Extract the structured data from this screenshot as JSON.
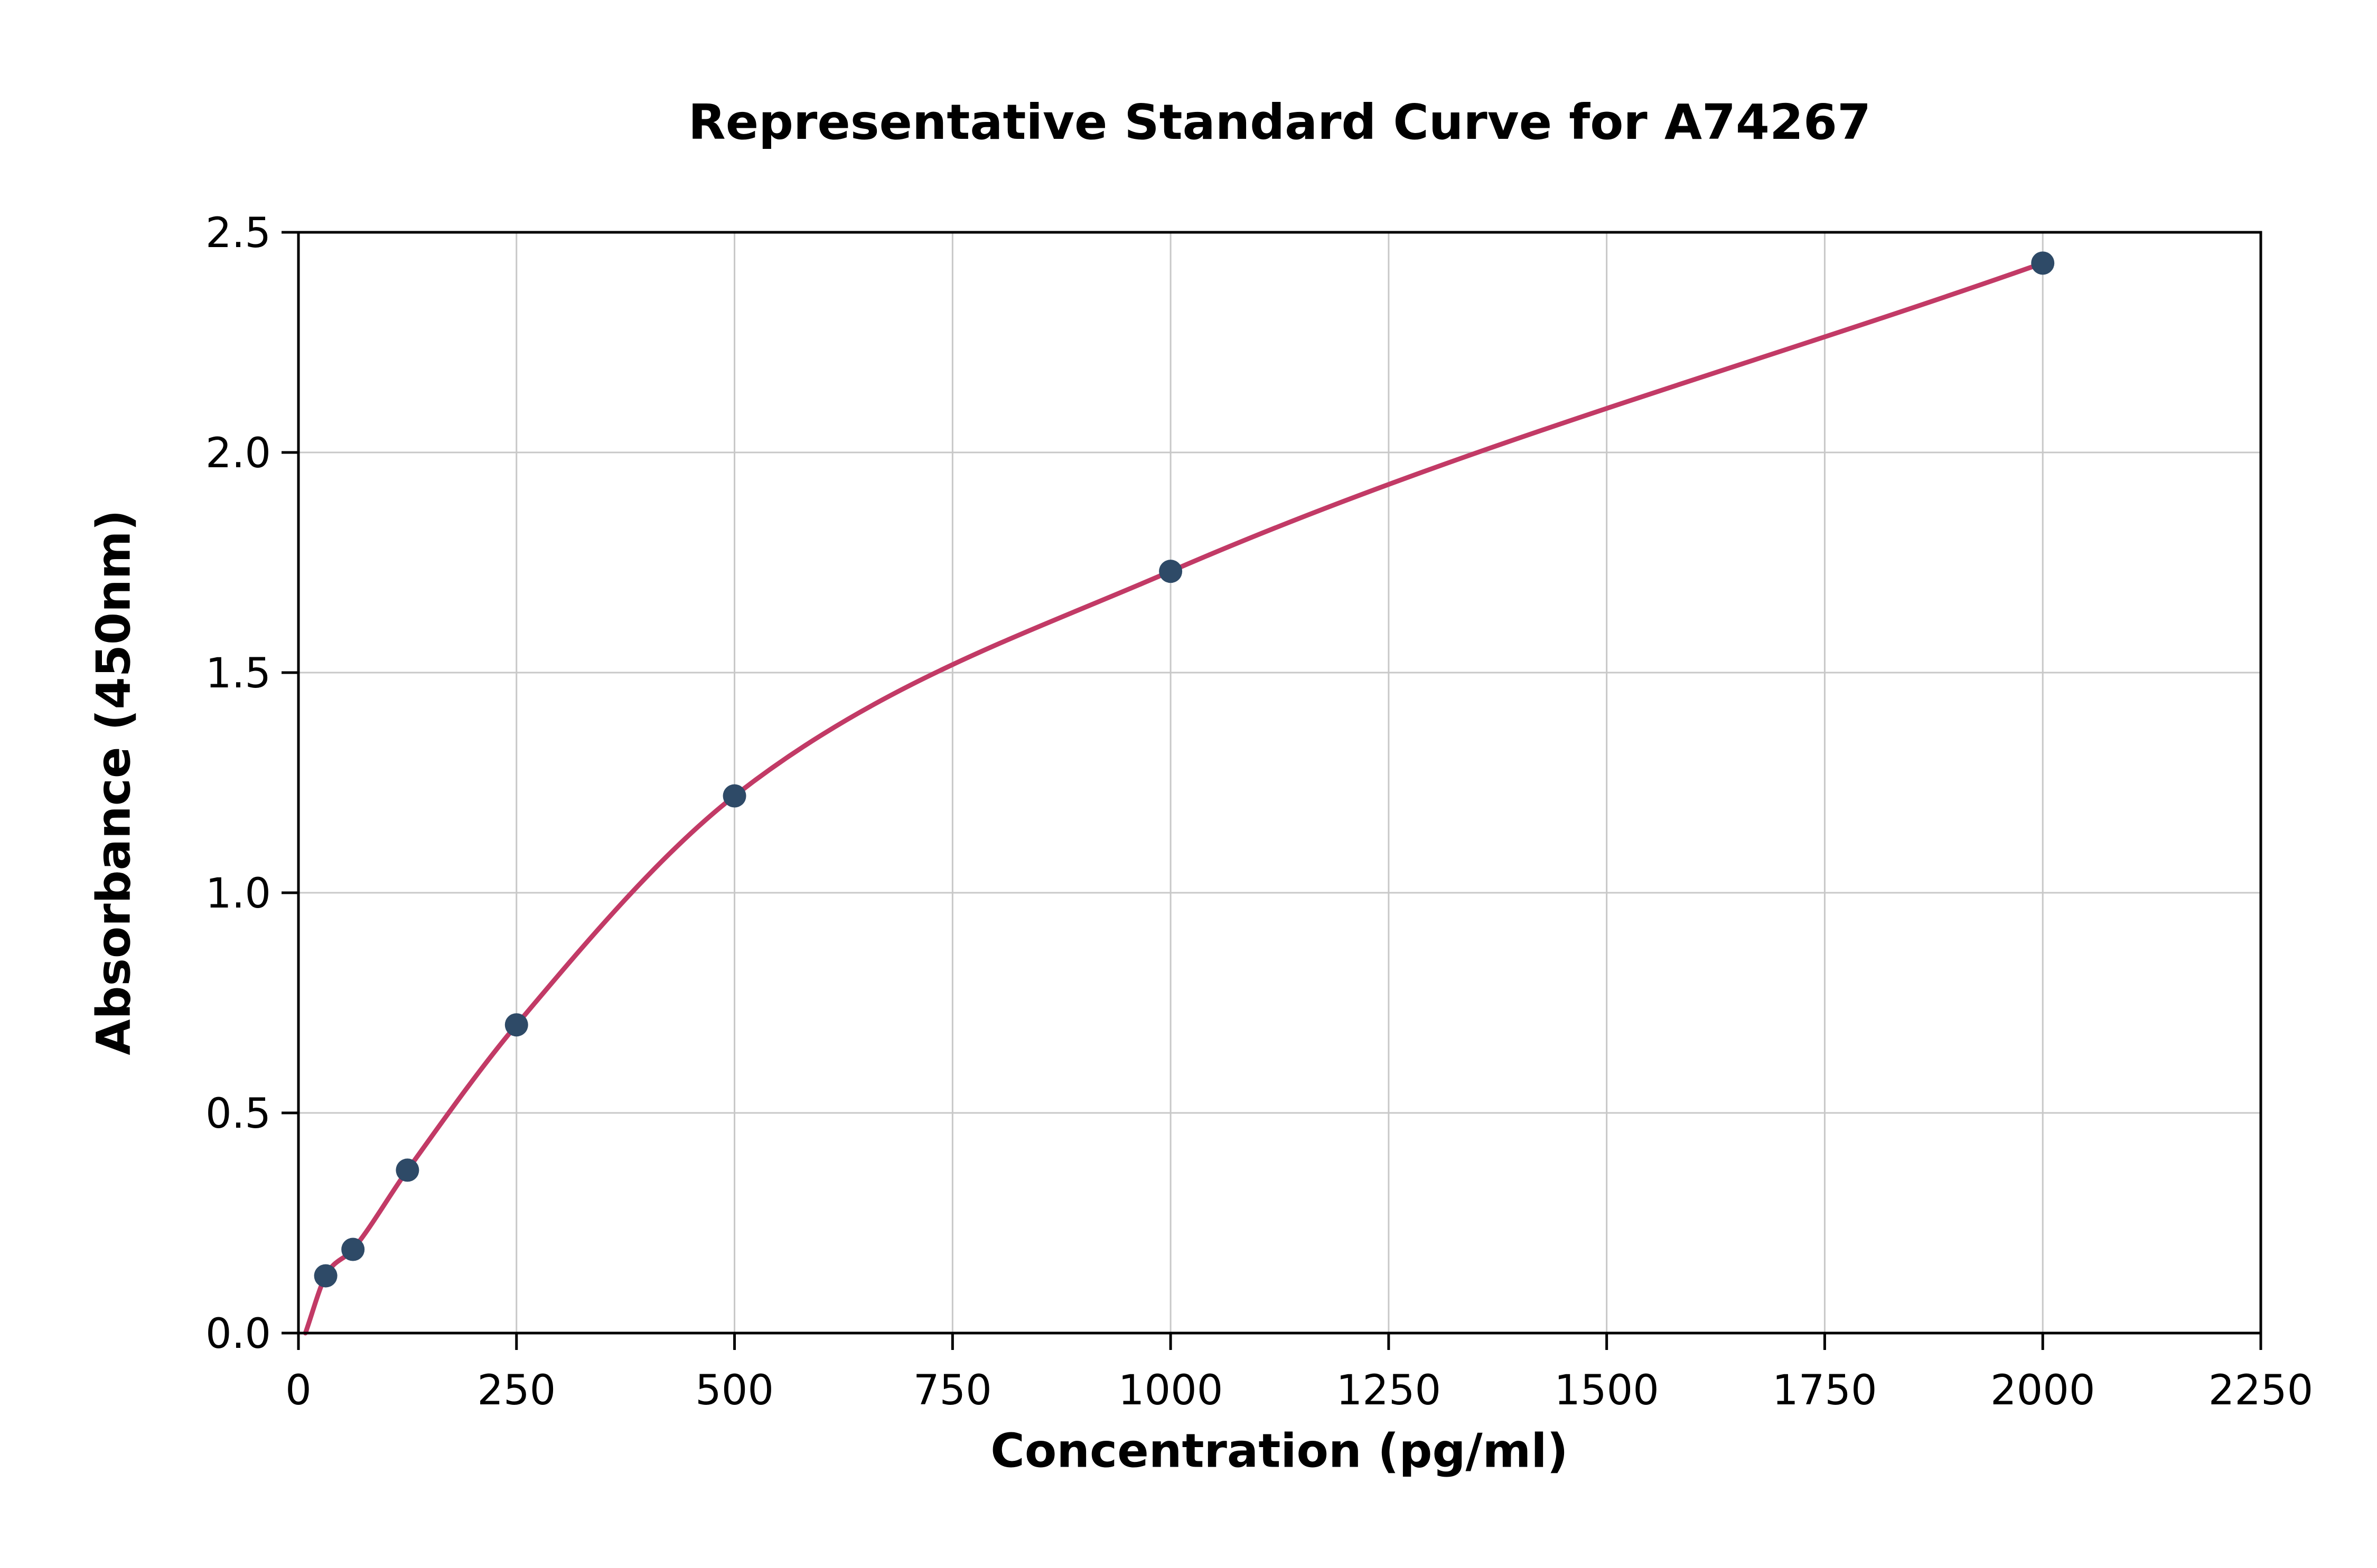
{
  "chart_data": {
    "type": "scatter",
    "title": "Representative Standard Curve for A74267",
    "xlabel": "Concentration (pg/ml)",
    "ylabel": "Absorbance (450nm)",
    "xlim": [
      0,
      2250
    ],
    "ylim": [
      0,
      2.5
    ],
    "x_ticks": [
      0,
      250,
      500,
      750,
      1000,
      1250,
      1500,
      1750,
      2000,
      2250
    ],
    "x_tick_labels": [
      "0",
      "250",
      "500",
      "750",
      "1000",
      "1250",
      "1500",
      "1750",
      "2000",
      "2250"
    ],
    "y_ticks": [
      0,
      0.5,
      1.0,
      1.5,
      2.0,
      2.5
    ],
    "y_tick_labels": [
      "0.0",
      "0.5",
      "1.0",
      "1.5",
      "2.0",
      "2.5"
    ],
    "grid": true,
    "legend": "none",
    "points": [
      {
        "x": 31.25,
        "y": 0.13
      },
      {
        "x": 62.5,
        "y": 0.19
      },
      {
        "x": 125,
        "y": 0.37
      },
      {
        "x": 250,
        "y": 0.7
      },
      {
        "x": 500,
        "y": 1.22
      },
      {
        "x": 1000,
        "y": 1.73
      },
      {
        "x": 2000,
        "y": 2.43
      }
    ],
    "curve_start": {
      "x": 8,
      "y": 0.0
    },
    "curve_color": "#c23a66",
    "point_color": "#2e4a67",
    "grid_color": "#c8c8c8",
    "axis_color": "#000000",
    "background": "#ffffff"
  }
}
